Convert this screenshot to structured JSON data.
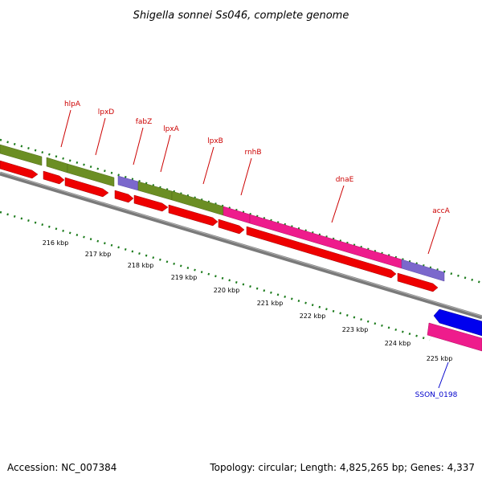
{
  "header": {
    "title": "Shigella sonnei Ss046, complete genome"
  },
  "footer": {
    "accession": "Accession: NC_007384",
    "summary": "Topology: circular; Length: 4,825,265 bp; Genes: 4,337"
  },
  "scale": {
    "labels": [
      "216 kbp",
      "217 kbp",
      "218 kbp",
      "219 kbp",
      "220 kbp",
      "221 kbp",
      "222 kbp",
      "223 kbp",
      "224 kbp",
      "225 kbp"
    ]
  },
  "colors": {
    "tick": "#1a7a1a",
    "backbone": "#7a7a7a",
    "forward_cds": "#6b8e23",
    "misc": "#7b68cc",
    "rna": "#ee1c8c",
    "reverse_cds": "#ee0000",
    "blue_feature": "#0000ee",
    "label_red": "#cc0000",
    "label_blue": "#0000cc"
  },
  "gene_labels": [
    {
      "id": "hlpA",
      "text": "hlpA",
      "color": "label_red"
    },
    {
      "id": "lpxD",
      "text": "lpxD",
      "color": "label_red"
    },
    {
      "id": "fabZ",
      "text": "fabZ",
      "color": "label_red"
    },
    {
      "id": "lpxA",
      "text": "lpxA",
      "color": "label_red"
    },
    {
      "id": "lpxB",
      "text": "lpxB",
      "color": "label_red"
    },
    {
      "id": "rnhB",
      "text": "rnhB",
      "color": "label_red"
    },
    {
      "id": "dnaE",
      "text": "dnaE",
      "color": "label_red"
    },
    {
      "id": "accA",
      "text": "accA",
      "color": "label_red"
    },
    {
      "id": "SSON_0198",
      "text": "SSON_0198",
      "color": "label_blue"
    }
  ]
}
